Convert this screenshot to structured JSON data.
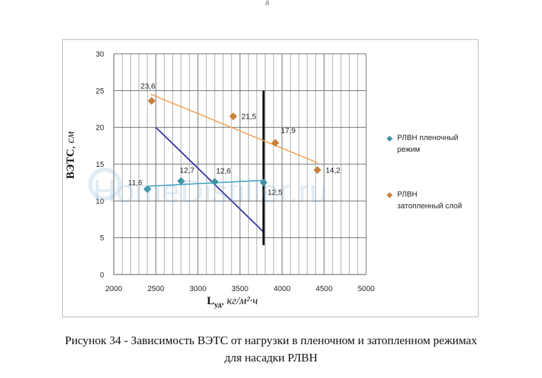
{
  "page": {
    "top_mark": "д"
  },
  "caption": {
    "line1": "Рисунок 34 - Зависимость ВЭТС от нагрузки в пленочном и затопленном режимах",
    "line2": "для насадки РЛВН"
  },
  "watermark": "HomeDistiller.ru",
  "chart_data": {
    "type": "scatter",
    "title": "",
    "xlabel_main": "L",
    "xlabel_sub": "уд",
    "xlabel_unit": ", кг/м²·ч",
    "ylabel_main": "ВЭТС",
    "ylabel_unit": ", см",
    "xlim": [
      2000,
      5000
    ],
    "ylim": [
      0,
      30
    ],
    "x_ticks": [
      "2000",
      "2500",
      "3000",
      "3500",
      "4000",
      "4500",
      "5000"
    ],
    "y_ticks": [
      "0",
      "5",
      "10",
      "15",
      "20",
      "25",
      "30"
    ],
    "grid": true,
    "legend_position": "right",
    "series": [
      {
        "name": "РЛВН пленочный режим",
        "legend_lines": [
          "РЛВН пленочный",
          "режим"
        ],
        "color": "#3b94a6",
        "line_color": "#3aa0c0",
        "points": [
          {
            "x": 2400,
            "y": 11.6,
            "label": "11,6"
          },
          {
            "x": 2800,
            "y": 12.7,
            "label": "12,7"
          },
          {
            "x": 3200,
            "y": 12.6,
            "label": "12,6"
          },
          {
            "x": 3780,
            "y": 12.5,
            "label": "12,5"
          }
        ],
        "trend": [
          {
            "x": 2400,
            "y": 12.0
          },
          {
            "x": 3780,
            "y": 12.8
          }
        ]
      },
      {
        "name": "РЛВН затопленный слой",
        "legend_lines": [
          "РЛВН",
          "затопленный слой"
        ],
        "color": "#c8803a",
        "line_color": "#f0a050",
        "points": [
          {
            "x": 2450,
            "y": 23.6,
            "label": "23,6"
          },
          {
            "x": 3420,
            "y": 21.5,
            "label": "21,5"
          },
          {
            "x": 3920,
            "y": 17.9,
            "label": "17,9"
          },
          {
            "x": 4420,
            "y": 14.2,
            "label": "14,2"
          }
        ],
        "trend": [
          {
            "x": 2440,
            "y": 24.5
          },
          {
            "x": 4420,
            "y": 15.2
          }
        ]
      }
    ],
    "extra_lines": [
      {
        "name": "diagonal-line",
        "color": "#3a3aaa",
        "width": 2,
        "points": [
          {
            "x": 2500,
            "y": 20
          },
          {
            "x": 3780,
            "y": 5.8
          }
        ]
      },
      {
        "name": "vertical-line",
        "color": "#000000",
        "width": 3,
        "points": [
          {
            "x": 3780,
            "y": 25
          },
          {
            "x": 3780,
            "y": 4
          }
        ]
      }
    ]
  }
}
